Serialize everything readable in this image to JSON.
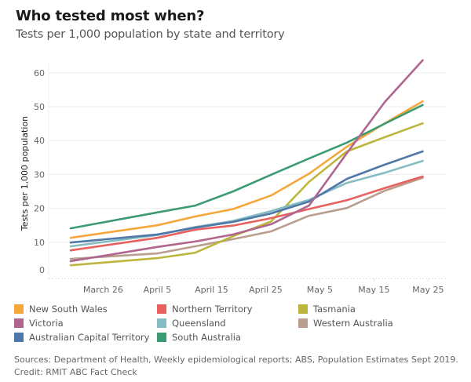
{
  "header": {
    "title": "Who tested most when?",
    "subtitle": "Tests per 1,000 population by state and territory"
  },
  "footer": {
    "sources": "Sources: Department of Health, Weekly epidemiological reports; ABS, Population Estimates Sept 2019.",
    "credit": "Credit: RMIT ABC Fact Check"
  },
  "chart_data": {
    "type": "line",
    "title": "Who tested most when?",
    "subtitle": "Tests per 1,000 population by state and territory",
    "xlabel": "",
    "ylabel": "Tests per 1,000 population",
    "ylim": [
      0,
      65
    ],
    "yticks": [
      0,
      10,
      20,
      30,
      40,
      50,
      60
    ],
    "xticks": [
      "March 26",
      "April 5",
      "April 15",
      "April 25",
      "May 5",
      "May 15",
      "May 25"
    ],
    "xtick_days": [
      6,
      16,
      26,
      36,
      46,
      56,
      66
    ],
    "x_days": [
      0,
      16,
      23,
      30,
      37,
      44,
      51,
      58,
      65
    ],
    "x": [
      "Mar 20",
      "Apr 5",
      "Apr 12",
      "Apr 19",
      "Apr 26",
      "May 3",
      "May 10",
      "May 17",
      "May 24"
    ],
    "xlim_days": [
      -2,
      68
    ],
    "grid": true,
    "legend_position": "bottom",
    "series": [
      {
        "name": "New South Wales",
        "color": "#f5a73b",
        "values": [
          11.3,
          15.0,
          17.6,
          19.8,
          23.8,
          30.2,
          38.2,
          45.1,
          51.6
        ]
      },
      {
        "name": "Northern Territory",
        "color": "#e8615f",
        "values": [
          7.6,
          11.3,
          13.7,
          14.9,
          17.1,
          19.8,
          22.4,
          26.0,
          29.4
        ]
      },
      {
        "name": "Tasmania",
        "color": "#bdb63e",
        "values": [
          3.2,
          5.3,
          6.9,
          11.8,
          16.1,
          27.8,
          36.8,
          41.0,
          45.1
        ]
      },
      {
        "name": "Victoria",
        "color": "#b0658f",
        "values": [
          4.4,
          8.6,
          10.2,
          12.3,
          15.3,
          20.8,
          36.3,
          51.4,
          63.7
        ]
      },
      {
        "name": "Queensland",
        "color": "#86bcc4",
        "values": [
          8.8,
          12.1,
          14.5,
          16.3,
          19.2,
          22.5,
          27.5,
          30.5,
          34.0
        ]
      },
      {
        "name": "Western Australia",
        "color": "#b99e8f",
        "values": [
          5.1,
          6.7,
          8.8,
          10.9,
          13.2,
          17.8,
          20.1,
          25.2,
          29.0
        ]
      },
      {
        "name": "Australian Capital Territory",
        "color": "#4f78a9",
        "values": [
          9.9,
          12.3,
          14.3,
          16.0,
          18.5,
          22.0,
          28.7,
          32.9,
          36.8
        ]
      },
      {
        "name": "South Australia",
        "color": "#3d9b73",
        "values": [
          14.1,
          18.8,
          20.8,
          25.0,
          29.9,
          34.7,
          39.4,
          45.0,
          50.5
        ]
      }
    ]
  }
}
